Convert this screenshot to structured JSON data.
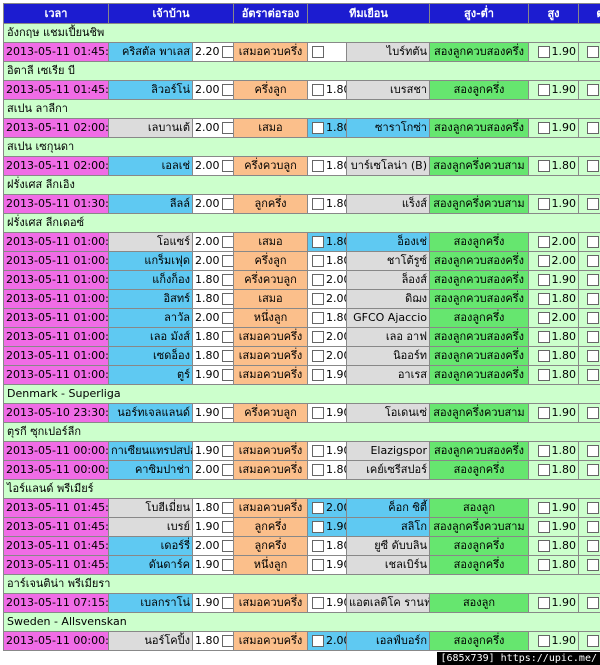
{
  "header": [
    "เวลา",
    "เจ้าบ้าน",
    "อัตราต่อรอง",
    "ทีมเยือน",
    "สูง-ต่ำ",
    "สูง",
    "ต่ำ"
  ],
  "sections": [
    {
      "league": "อังกฤษ แชมเปี้ยนชิพ",
      "rows": [
        {
          "time": "2013-05-11 01:45:00",
          "home": "คริสตัล พาเลส",
          "hodd": "2.20",
          "hc": "เสมอควบครึ่ง",
          "aodd": "",
          "away": "ไบร์ทตัน",
          "ou": "สองลูกควบสองครึ่ง",
          "over": "1.90",
          "under": "1.90",
          "hs": "fav",
          "as": "plain",
          "ah": false
        }
      ]
    },
    {
      "league": "อิตาลี เซเรีย บี",
      "rows": [
        {
          "time": "2013-05-11 01:45:00",
          "home": "ลิวอร์โน่",
          "hodd": "2.00",
          "hc": "ครึ่งลูก",
          "aodd": "1.80",
          "away": "เบรสชา",
          "ou": "สองลูกครึ่ง",
          "over": "1.90",
          "under": "1.90",
          "hs": "fav",
          "as": "plain",
          "ah": false
        }
      ]
    },
    {
      "league": "สเปน ลาลีกา",
      "rows": [
        {
          "time": "2013-05-11 02:00:00",
          "home": "เลบานเต้",
          "hodd": "2.00",
          "hc": "เสมอ",
          "aodd": "1.80",
          "away": "ซาราโกซ่า",
          "ou": "สองลูกควบสองครึ่ง",
          "over": "1.90",
          "under": "1.90",
          "hs": "plain",
          "as": "fav",
          "ah": true
        }
      ]
    },
    {
      "league": "สเปน เซกุนดา",
      "rows": [
        {
          "time": "2013-05-11 02:00:00",
          "home": "เอลเช่",
          "hodd": "2.00",
          "hc": "ครึ่งควบลูก",
          "aodd": "1.80",
          "away": "บาร์เซโลน่า (B)",
          "ou": "สองลูกครึ่งควบสาม",
          "over": "1.80",
          "under": "2.00",
          "hs": "fav",
          "as": "plain",
          "ah": false
        }
      ]
    },
    {
      "league": "ฝรั่งเศส ลีกเอิง",
      "rows": [
        {
          "time": "2013-05-11 01:30:00",
          "home": "ลีลล์",
          "hodd": "2.00",
          "hc": "ลูกครึ่ง",
          "aodd": "1.80",
          "away": "แร็งส์",
          "ou": "สองลูกครึ่งควบสาม",
          "over": "1.90",
          "under": "1.90",
          "hs": "fav",
          "as": "plain",
          "ah": false
        }
      ]
    },
    {
      "league": "ฝรั่งเศส ลีกเดอซ์",
      "rows": [
        {
          "time": "2013-05-11 01:00:00",
          "home": "โอแซร์",
          "hodd": "2.00",
          "hc": "เสมอ",
          "aodd": "1.80",
          "away": "อ็องเช่",
          "ou": "สองลูกครึ่ง",
          "over": "2.00",
          "under": "1.80",
          "hs": "plain",
          "as": "fav",
          "ah": true
        },
        {
          "time": "2013-05-11 01:00:00",
          "home": "แกร็มเฟุด",
          "hodd": "2.00",
          "hc": "ครึ่งลูก",
          "aodd": "1.80",
          "away": "ชาโต้รูซ์",
          "ou": "สองลูกควบสองครึ่ง",
          "over": "2.00",
          "under": "1.80",
          "hs": "fav",
          "as": "plain",
          "ah": false
        },
        {
          "time": "2013-05-11 01:00:00",
          "home": "แก็งก็อง",
          "hodd": "1.80",
          "hc": "ครึ่งควบลูก",
          "aodd": "2.00",
          "away": "ล็องส์",
          "ou": "สองลูกควบสองครึ่ง",
          "over": "1.90",
          "under": "1.90",
          "hs": "fav",
          "as": "plain",
          "ah": false
        },
        {
          "time": "2013-05-11 01:00:00",
          "home": "อิสทร์",
          "hodd": "1.80",
          "hc": "เสมอ",
          "aodd": "2.00",
          "away": "ดิฌง",
          "ou": "สองลูกควบสองครึ่ง",
          "over": "1.80",
          "under": "2.00",
          "hs": "fav",
          "as": "plain",
          "ah": false
        },
        {
          "time": "2013-05-11 01:00:00",
          "home": "ลาวัล",
          "hodd": "2.00",
          "hc": "หนึ่งลูก",
          "aodd": "1.80",
          "away": "GFCO Ajaccio",
          "ou": "สองลูกครึ่ง",
          "over": "2.00",
          "under": "1.80",
          "hs": "fav",
          "as": "plain",
          "ah": false
        },
        {
          "time": "2013-05-11 01:00:00",
          "home": "เลอ มังส์",
          "hodd": "1.80",
          "hc": "เสมอควบครึ่ง",
          "aodd": "2.00",
          "away": "เลอ อาฟ",
          "ou": "สองลูกควบสองครึ่ง",
          "over": "1.80",
          "under": "2.00",
          "hs": "fav",
          "as": "plain",
          "ah": false
        },
        {
          "time": "2013-05-11 01:00:00",
          "home": "เซดอ็อง",
          "hodd": "1.80",
          "hc": "เสมอควบครึ่ง",
          "aodd": "2.00",
          "away": "นิออร์ท",
          "ou": "สองลูกควบสองครึ่ง",
          "over": "1.80",
          "under": "2.00",
          "hs": "fav",
          "as": "plain",
          "ah": false
        },
        {
          "time": "2013-05-11 01:00:00",
          "home": "ตูร์",
          "hodd": "1.90",
          "hc": "เสมอควบครึ่ง",
          "aodd": "1.90",
          "away": "อาเรส",
          "ou": "สองลูกควบสองครึ่ง",
          "over": "1.80",
          "under": "1.80",
          "hs": "fav",
          "as": "plain",
          "ah": false
        }
      ]
    },
    {
      "league": "Denmark - Superliga",
      "rows": [
        {
          "time": "2013-05-10 23:30:00",
          "home": "นอร์ทเจลแลนด์",
          "hodd": "1.90",
          "hc": "ครึ่งควบลูก",
          "aodd": "1.90",
          "away": "โอเดนเซ่",
          "ou": "สองลูกครึ่งควบสาม",
          "over": "1.90",
          "under": "1.90",
          "hs": "fav",
          "as": "plain",
          "ah": false
        }
      ]
    },
    {
      "league": "ตุรกี ซุกเปอร์ลีก",
      "rows": [
        {
          "time": "2013-05-11 00:00:00",
          "home": "กาเซียนแทรปสปอร์",
          "hodd": "1.90",
          "hc": "เสมอควบครึ่ง",
          "aodd": "1.90",
          "away": "Elazigspor",
          "ou": "สองลูกควบสองครึ่ง",
          "over": "1.80",
          "under": "2.00",
          "hs": "fav",
          "as": "plain",
          "ah": false
        },
        {
          "time": "2013-05-11 00:00:00",
          "home": "คาซิมปาช่า",
          "hodd": "2.00",
          "hc": "เสมอควบครึ่ง",
          "aodd": "1.80",
          "away": "เคย์เซรีสปอร์",
          "ou": "สองลูกครึ่ง",
          "over": "1.80",
          "under": "2.00",
          "hs": "fav",
          "as": "plain",
          "ah": false
        }
      ]
    },
    {
      "league": "ไอร์แลนด์ พรีเมียร์",
      "rows": [
        {
          "time": "2013-05-11 01:45:00",
          "home": "โบฮีเมี่ยน",
          "hodd": "1.80",
          "hc": "เสมอควบครึ่ง",
          "aodd": "2.00",
          "away": "ค็อก ซิตี้",
          "ou": "สองลูก",
          "over": "1.90",
          "under": "1.90",
          "hs": "plain",
          "as": "fav",
          "ah": true
        },
        {
          "time": "2013-05-11 01:45:00",
          "home": "เบรย์",
          "hodd": "1.90",
          "hc": "ลูกครึ่ง",
          "aodd": "1.90",
          "away": "สลิโก",
          "ou": "สองลูกครึ่งควบสาม",
          "over": "1.90",
          "under": "1.90",
          "hs": "plain",
          "as": "fav",
          "ah": true
        },
        {
          "time": "2013-05-11 01:45:00",
          "home": "เดอร์รี่",
          "hodd": "2.00",
          "hc": "ลูกครึ่ง",
          "aodd": "1.80",
          "away": "ยูซี ดับบลิน",
          "ou": "สองลูกครึ่ง",
          "over": "1.80",
          "under": "1.80",
          "hs": "fav",
          "as": "plain",
          "ah": false
        },
        {
          "time": "2013-05-11 01:45:00",
          "home": "ดันดาร์ค",
          "hodd": "1.90",
          "hc": "หนึ่งลูก",
          "aodd": "1.90",
          "away": "เชลเบิร์น",
          "ou": "สองลูกครึ่ง",
          "over": "1.80",
          "under": "2.00",
          "hs": "fav",
          "as": "plain",
          "ah": false
        }
      ]
    },
    {
      "league": "อาร์เจนติน่า พรีเมียรา",
      "rows": [
        {
          "time": "2013-05-11 07:15:00",
          "home": "เบลกราโน่",
          "hodd": "1.90",
          "hc": "เสมอควบครึ่ง",
          "aodd": "1.90",
          "away": "แอตเลติโค รานฟ่ล่า",
          "ou": "สองลูก",
          "over": "1.90",
          "under": "1.90",
          "hs": "fav",
          "as": "plain",
          "ah": false
        }
      ]
    },
    {
      "league": "Sweden - Allsvenskan",
      "rows": [
        {
          "time": "2013-05-11 00:00:00",
          "home": "นอร์โคปิ้ง",
          "hodd": "1.80",
          "hc": "เสมอควบครึ่ง",
          "aodd": "2.00",
          "away": "เอลฟ์บอร์ก",
          "ou": "สองลูกครึ่ง",
          "over": "1.90",
          "under": "1.90",
          "hs": "plain",
          "as": "fav",
          "ah": true
        }
      ]
    }
  ],
  "badge": "[685x739] https://upic.me/"
}
